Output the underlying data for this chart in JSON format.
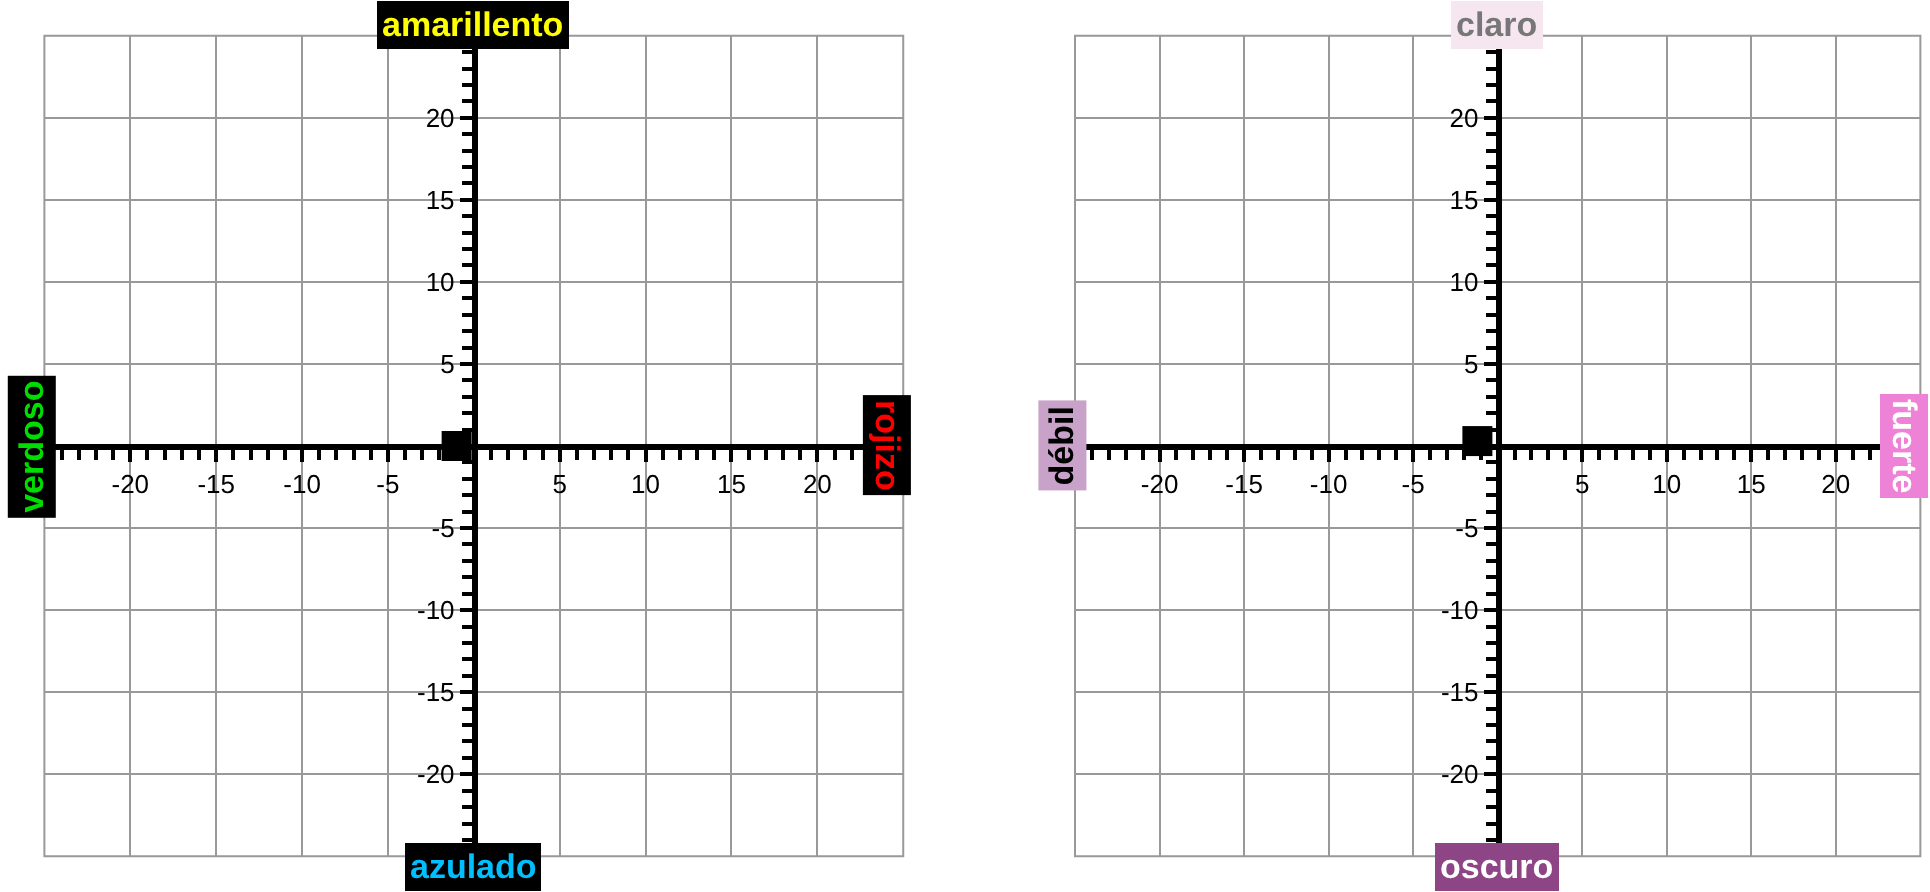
{
  "chart_data": [
    {
      "type": "scatter",
      "x": [
        -1
      ],
      "series": [
        {
          "color": "#000000",
          "values": [
            0
          ]
        }
      ],
      "marker": "square",
      "grid": true,
      "xlim": [
        -25,
        25
      ],
      "ylim": [
        -25,
        25
      ],
      "xticks": [
        -20,
        -15,
        -10,
        -5,
        {
          "value": 0,
          "label": null
        },
        5,
        10,
        15,
        20
      ],
      "yticks": [
        -20,
        -15,
        -10,
        -5,
        {
          "value": 0,
          "label": null
        },
        5,
        10,
        15,
        20
      ],
      "annotations": [
        "amarillento",
        "azulado",
        "verdoso",
        "rojizo"
      ]
    },
    {
      "type": "scatter",
      "x": [
        -1.2
      ],
      "series": [
        {
          "color": "#000000",
          "values": [
            0.3
          ]
        }
      ],
      "marker": "square",
      "grid": true,
      "xlim": [
        -25,
        25
      ],
      "ylim": [
        -25,
        25
      ],
      "xticks": [
        -20,
        -15,
        -10,
        -5,
        {
          "value": 0,
          "label": null
        },
        5,
        10,
        15,
        20
      ],
      "yticks": [
        -20,
        -15,
        -10,
        -5,
        {
          "value": 0,
          "label": null
        },
        5,
        10,
        15,
        20
      ],
      "annotations": [
        "claro",
        "oscuro",
        "débil",
        "fuerte"
      ]
    }
  ]
}
